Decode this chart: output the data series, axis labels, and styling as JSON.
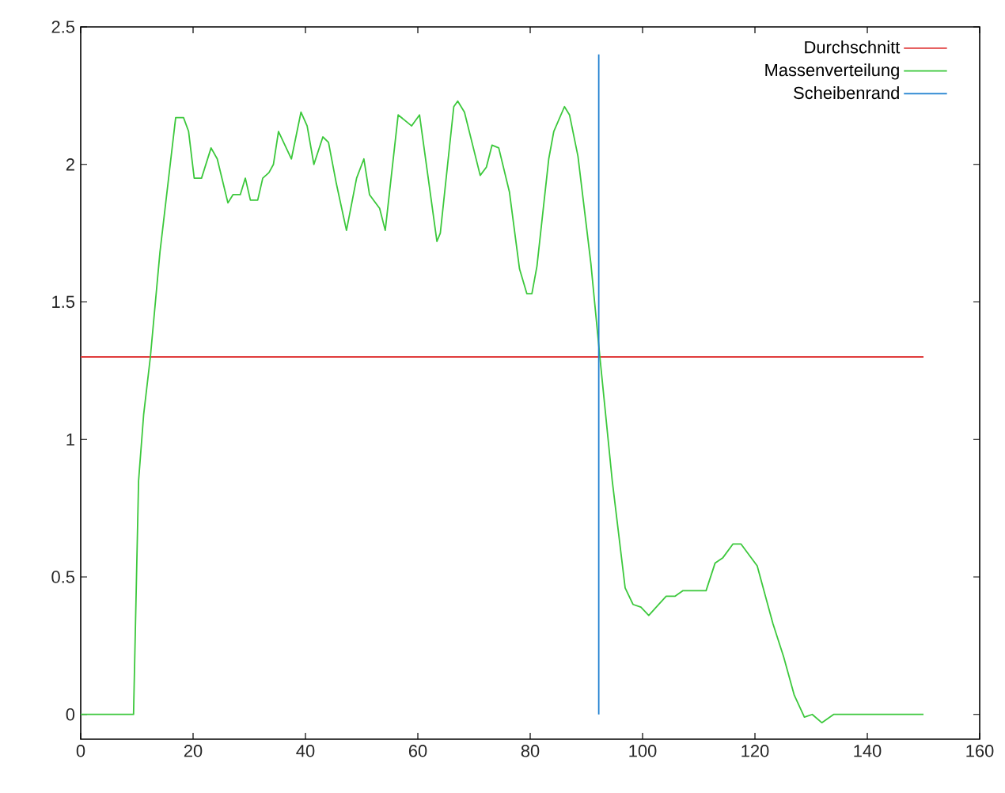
{
  "chart_data": {
    "type": "line",
    "xlim": [
      0,
      160
    ],
    "ylim": [
      -0.09,
      2.5
    ],
    "xticks": [
      0,
      20,
      40,
      60,
      80,
      100,
      120,
      140,
      160
    ],
    "yticks": [
      0,
      0.5,
      1,
      1.5,
      2,
      2.5
    ],
    "grid": false,
    "legend": "top right",
    "marker": "none",
    "line_style": "solid",
    "series": [
      {
        "name": "Durchschnitt",
        "color": "#e03c3c",
        "x": [
          0,
          150
        ],
        "values": [
          1.3,
          1.3
        ]
      },
      {
        "name": "Massenverteilung",
        "color": "#3cc83c",
        "x": [
          0,
          9.4,
          10.3,
          11.2,
          12.4,
          14.1,
          16.9,
          18.3,
          19.2,
          20.2,
          21.5,
          23.2,
          24.3,
          26.2,
          27.1,
          28.4,
          29.3,
          30.2,
          31.5,
          32.4,
          33.5,
          34.3,
          35.2,
          37.5,
          39.2,
          40.3,
          41.5,
          43.1,
          44.1,
          45.5,
          47.3,
          49.1,
          50.4,
          51.4,
          53.2,
          54.2,
          56.5,
          58.9,
          60.3,
          63.4,
          64.0,
          66.4,
          67.1,
          68.3,
          71.1,
          72.2,
          73.2,
          74.4,
          76.3,
          78.1,
          79.4,
          80.3,
          81.2,
          83.3,
          84.2,
          86.1,
          87.0,
          88.5,
          90.8,
          92.4,
          94.6,
          96.9,
          98.3,
          99.7,
          101.1,
          104.2,
          105.8,
          107.2,
          111.3,
          112.9,
          114.3,
          116.1,
          117.5,
          120.4,
          123.2,
          125.1,
          127.0,
          128.8,
          130.2,
          131.9,
          134.0,
          140.4,
          150
        ],
        "values": [
          0,
          0,
          0.85,
          1.09,
          1.3,
          1.68,
          2.17,
          2.17,
          2.12,
          1.95,
          1.95,
          2.06,
          2.02,
          1.86,
          1.89,
          1.89,
          1.95,
          1.87,
          1.87,
          1.95,
          1.97,
          2.0,
          2.12,
          2.02,
          2.19,
          2.14,
          2.0,
          2.1,
          2.08,
          1.93,
          1.76,
          1.95,
          2.02,
          1.89,
          1.84,
          1.76,
          2.18,
          2.14,
          2.18,
          1.72,
          1.75,
          2.21,
          2.23,
          2.19,
          1.96,
          1.99,
          2.07,
          2.06,
          1.9,
          1.62,
          1.53,
          1.53,
          1.63,
          2.02,
          2.12,
          2.21,
          2.18,
          2.03,
          1.64,
          1.3,
          0.85,
          0.46,
          0.4,
          0.39,
          0.36,
          0.43,
          0.43,
          0.45,
          0.45,
          0.55,
          0.57,
          0.62,
          0.62,
          0.54,
          0.33,
          0.21,
          0.07,
          -0.01,
          0.0,
          -0.03,
          0.0,
          0.0,
          0.0
        ]
      },
      {
        "name": "Scheibenrand",
        "color": "#1f80d0",
        "x": [
          92.2,
          92.2
        ],
        "values": [
          0,
          2.4
        ]
      }
    ]
  }
}
